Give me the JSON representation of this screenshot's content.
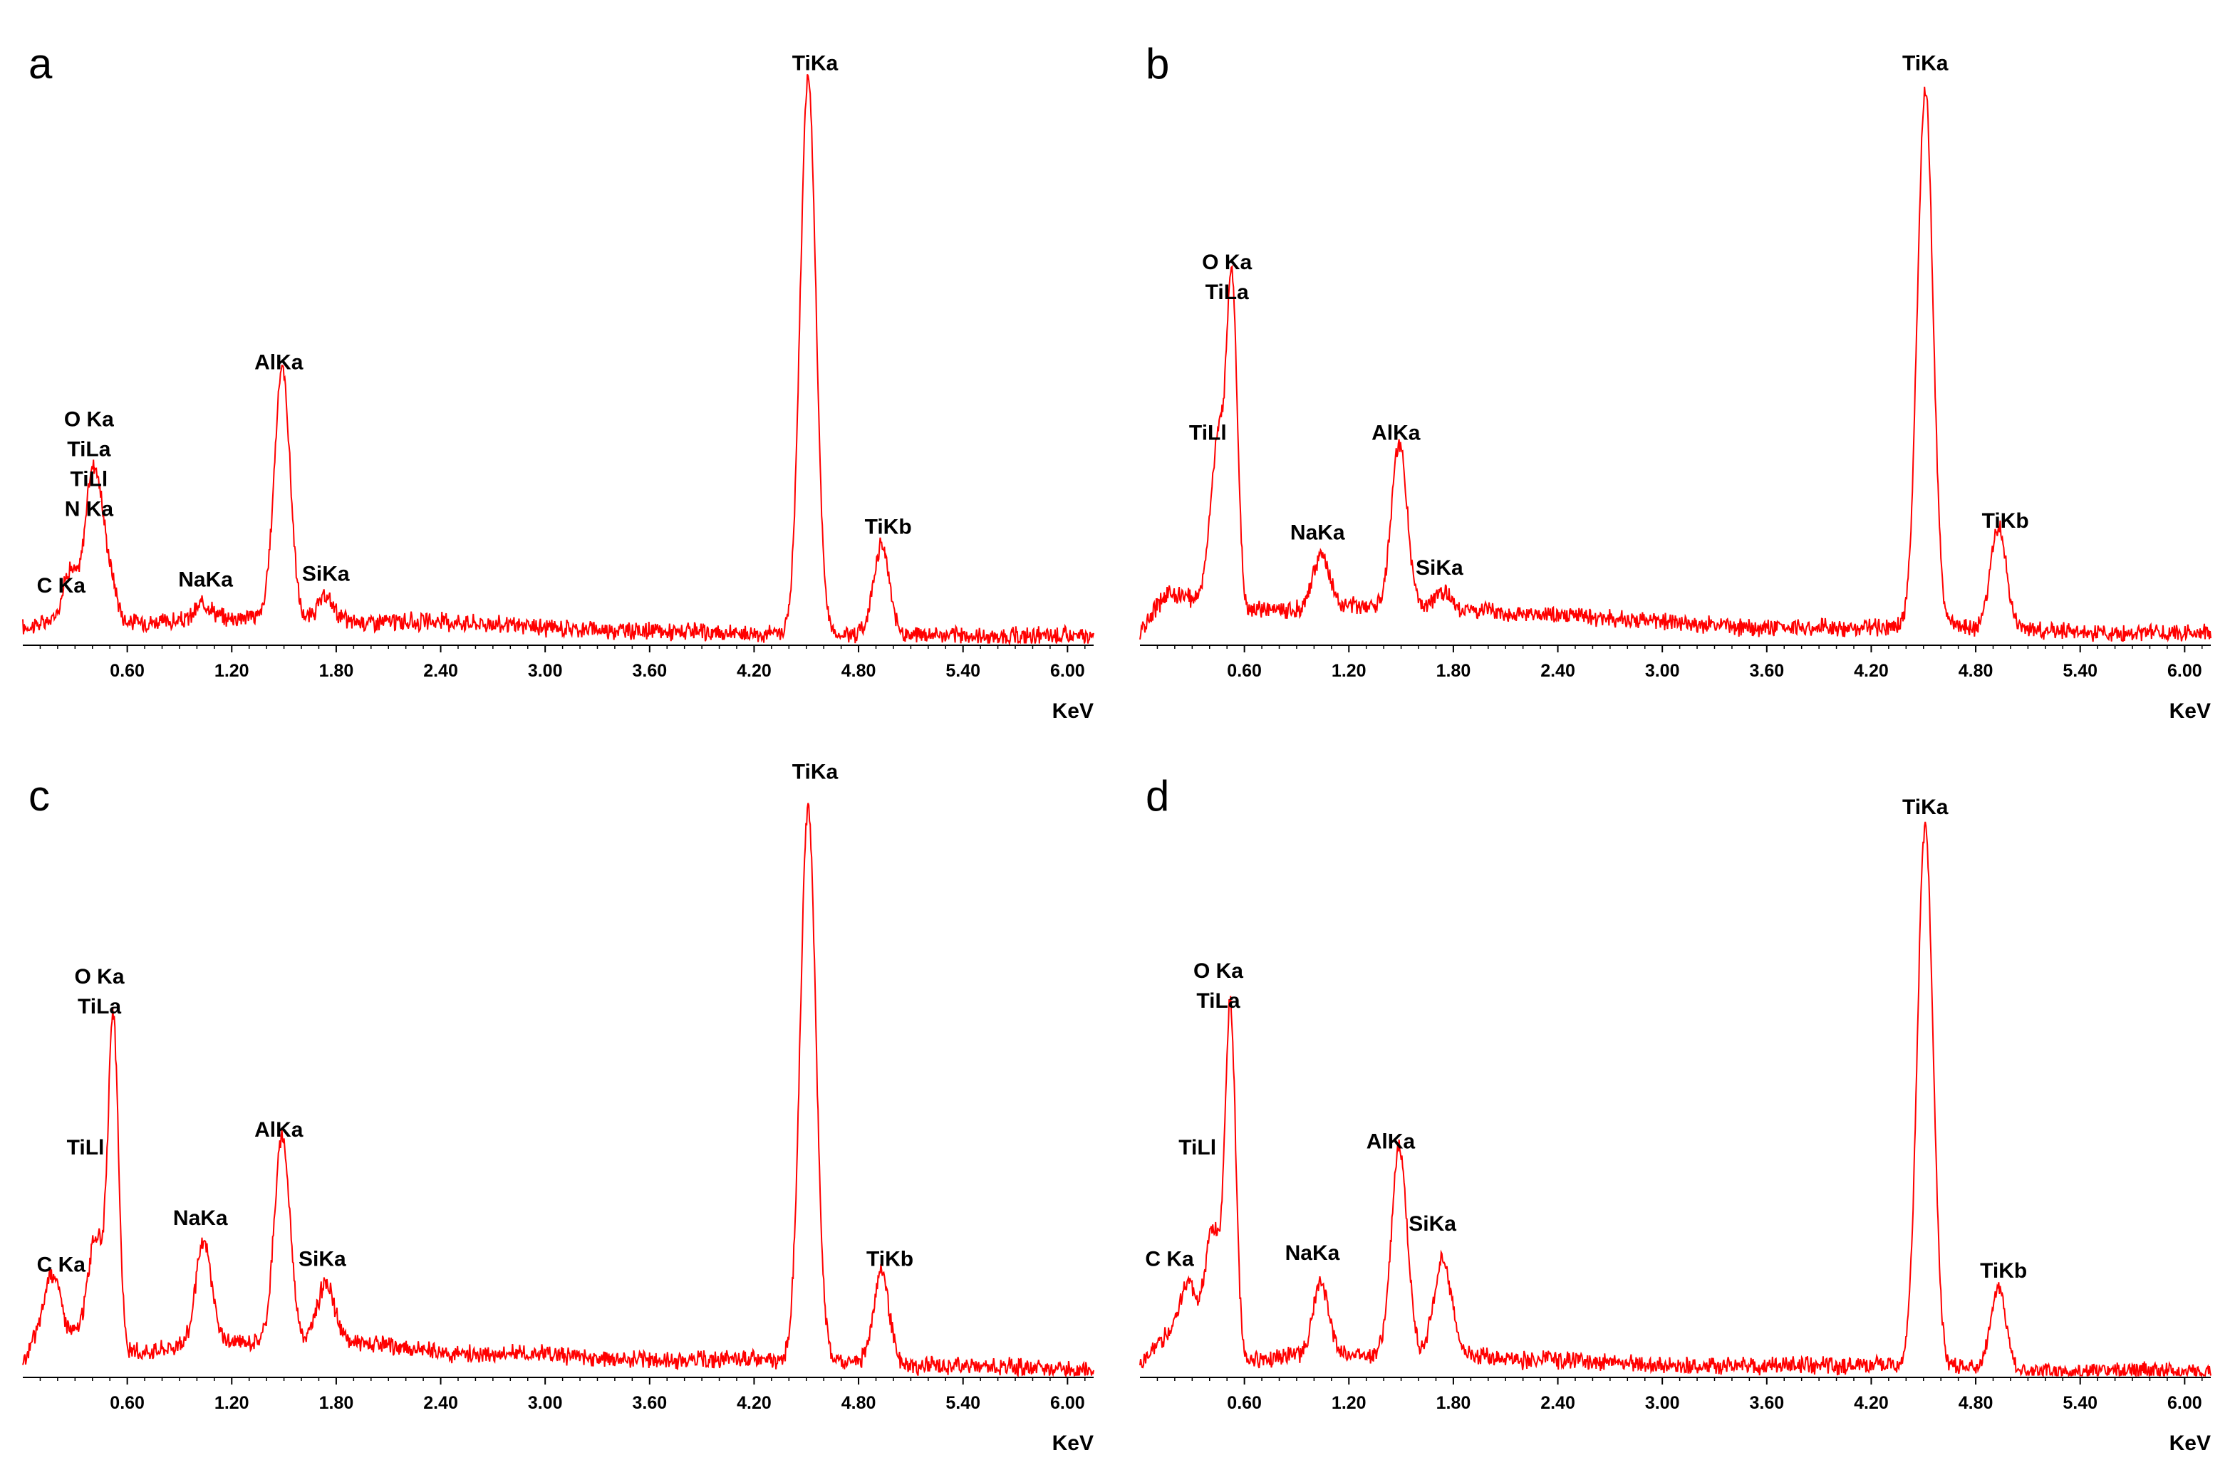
{
  "colors": {
    "spectrum": "#ff0000",
    "axis": "#000000",
    "background": "#ffffff"
  },
  "chart_data": [
    {
      "type": "line",
      "panel_label": "a",
      "xlabel": "KeV",
      "xlim": [
        0,
        6.15
      ],
      "ylim": [
        0,
        100
      ],
      "x_ticks": [
        "0.60",
        "1.20",
        "1.80",
        "2.40",
        "3.00",
        "3.60",
        "4.20",
        "4.80",
        "5.40",
        "6.00"
      ],
      "background": [
        [
          0,
          3
        ],
        [
          0.15,
          4
        ],
        [
          0.3,
          5
        ],
        [
          0.6,
          4
        ],
        [
          1.0,
          4
        ],
        [
          1.3,
          5
        ],
        [
          1.6,
          4
        ],
        [
          1.9,
          4
        ],
        [
          2.2,
          4
        ],
        [
          2.5,
          4
        ],
        [
          3.0,
          3
        ],
        [
          3.5,
          2.5
        ],
        [
          4.0,
          2
        ],
        [
          4.4,
          2
        ],
        [
          4.6,
          2
        ],
        [
          5.0,
          2
        ],
        [
          5.5,
          1.5
        ],
        [
          6.15,
          1.5
        ]
      ],
      "peaks": [
        {
          "label": "C Ka",
          "energy": 0.27,
          "height": 8,
          "width": 0.04
        },
        {
          "label": "N Ka",
          "energy": 0.39,
          "height": 20,
          "width": 0.04
        },
        {
          "label": "TiLl",
          "energy": 0.45,
          "height": 14,
          "width": 0.04
        },
        {
          "label": "O Ka",
          "energy": 0.52,
          "height": 4,
          "width": 0.03
        },
        {
          "label": "NaKa",
          "energy": 1.04,
          "height": 3,
          "width": 0.05
        },
        {
          "label": "AlKa",
          "energy": 1.49,
          "height": 43,
          "width": 0.045
        },
        {
          "label": "SiKa",
          "energy": 1.74,
          "height": 4,
          "width": 0.05
        },
        {
          "label": "TiKa",
          "energy": 4.51,
          "height": 95,
          "width": 0.045
        },
        {
          "label": "TiKb",
          "energy": 4.93,
          "height": 15,
          "width": 0.045
        }
      ],
      "peak_labels": [
        {
          "lines": [
            "C Ka"
          ],
          "energy": 0.22,
          "label_level": 9
        },
        {
          "lines": [
            "O Ka",
            "TiLa",
            "TiLl",
            "N Ka"
          ],
          "energy": 0.38,
          "label_level": 22
        },
        {
          "lines": [
            "NaKa"
          ],
          "energy": 1.05,
          "label_level": 10
        },
        {
          "lines": [
            "AlKa"
          ],
          "energy": 1.47,
          "label_level": 47
        },
        {
          "lines": [
            "SiKa"
          ],
          "energy": 1.74,
          "label_level": 11
        },
        {
          "lines": [
            "TiKa"
          ],
          "energy": 4.55,
          "label_level": 98
        },
        {
          "lines": [
            "TiKb"
          ],
          "energy": 4.97,
          "label_level": 19
        }
      ]
    },
    {
      "type": "line",
      "panel_label": "b",
      "xlabel": "KeV",
      "xlim": [
        0,
        6.15
      ],
      "ylim": [
        0,
        100
      ],
      "x_ticks": [
        "0.60",
        "1.20",
        "1.80",
        "2.40",
        "3.00",
        "3.60",
        "4.20",
        "4.80",
        "5.40",
        "6.00"
      ],
      "background": [
        [
          0,
          2
        ],
        [
          0.15,
          9
        ],
        [
          0.3,
          8
        ],
        [
          0.6,
          6
        ],
        [
          1.0,
          6
        ],
        [
          1.3,
          7
        ],
        [
          1.6,
          6
        ],
        [
          1.9,
          6
        ],
        [
          2.2,
          5
        ],
        [
          2.5,
          5
        ],
        [
          3.0,
          4
        ],
        [
          3.5,
          3
        ],
        [
          4.0,
          3
        ],
        [
          4.4,
          3
        ],
        [
          4.6,
          3
        ],
        [
          5.0,
          3
        ],
        [
          5.5,
          2
        ],
        [
          6.15,
          2
        ]
      ],
      "peaks": [
        {
          "label": "TiLl",
          "energy": 0.45,
          "height": 28,
          "width": 0.045
        },
        {
          "label": "O Ka",
          "energy": 0.53,
          "height": 52,
          "width": 0.03
        },
        {
          "label": "NaKa",
          "energy": 1.04,
          "height": 9,
          "width": 0.05
        },
        {
          "label": "AlKa",
          "energy": 1.49,
          "height": 28,
          "width": 0.045
        },
        {
          "label": "SiKa",
          "energy": 1.74,
          "height": 3,
          "width": 0.05
        },
        {
          "label": "TiKa",
          "energy": 4.51,
          "height": 92,
          "width": 0.045
        },
        {
          "label": "TiKb",
          "energy": 4.93,
          "height": 17,
          "width": 0.045
        }
      ],
      "peak_labels": [
        {
          "lines": [
            "TiLl"
          ],
          "energy": 0.39,
          "label_level": 35
        },
        {
          "lines": [
            "O Ka",
            "TiLa"
          ],
          "energy": 0.5,
          "label_level": 59
        },
        {
          "lines": [
            "NaKa"
          ],
          "energy": 1.02,
          "label_level": 18
        },
        {
          "lines": [
            "AlKa"
          ],
          "energy": 1.47,
          "label_level": 35
        },
        {
          "lines": [
            "SiKa"
          ],
          "energy": 1.72,
          "label_level": 12
        },
        {
          "lines": [
            "TiKa"
          ],
          "energy": 4.51,
          "label_level": 98
        },
        {
          "lines": [
            "TiKb"
          ],
          "energy": 4.97,
          "label_level": 20
        }
      ]
    },
    {
      "type": "line",
      "panel_label": "c",
      "xlabel": "KeV",
      "xlim": [
        0,
        6.15
      ],
      "ylim": [
        0,
        100
      ],
      "x_ticks": [
        "0.60",
        "1.20",
        "1.80",
        "2.40",
        "3.00",
        "3.60",
        "4.20",
        "4.80",
        "5.40",
        "6.00"
      ],
      "background": [
        [
          0,
          2
        ],
        [
          0.15,
          13
        ],
        [
          0.25,
          8
        ],
        [
          0.6,
          4
        ],
        [
          1.0,
          6
        ],
        [
          1.3,
          6
        ],
        [
          1.6,
          6
        ],
        [
          1.9,
          6
        ],
        [
          2.2,
          5
        ],
        [
          2.5,
          4
        ],
        [
          3.0,
          4
        ],
        [
          3.5,
          3
        ],
        [
          4.0,
          3
        ],
        [
          4.4,
          3
        ],
        [
          4.6,
          3
        ],
        [
          5.0,
          2
        ],
        [
          5.5,
          2
        ],
        [
          6.15,
          1
        ]
      ],
      "peaks": [
        {
          "label": "C Ka",
          "energy": 0.18,
          "height": 6,
          "width": 0.04
        },
        {
          "label": "TiLl",
          "energy": 0.42,
          "height": 18,
          "width": 0.045
        },
        {
          "label": "O Ka",
          "energy": 0.52,
          "height": 55,
          "width": 0.03
        },
        {
          "label": "NaKa",
          "energy": 1.04,
          "height": 17,
          "width": 0.045
        },
        {
          "label": "AlKa",
          "energy": 1.49,
          "height": 35,
          "width": 0.045
        },
        {
          "label": "SiKa",
          "energy": 1.74,
          "height": 10,
          "width": 0.05
        },
        {
          "label": "TiKa",
          "energy": 4.51,
          "height": 94,
          "width": 0.045
        },
        {
          "label": "TiKb",
          "energy": 4.93,
          "height": 16,
          "width": 0.045
        }
      ],
      "peak_labels": [
        {
          "lines": [
            "C Ka"
          ],
          "energy": 0.22,
          "label_level": 18
        },
        {
          "lines": [
            "TiLl"
          ],
          "energy": 0.36,
          "label_level": 38
        },
        {
          "lines": [
            "O Ka",
            "TiLa"
          ],
          "energy": 0.44,
          "label_level": 62
        },
        {
          "lines": [
            "NaKa"
          ],
          "energy": 1.02,
          "label_level": 26
        },
        {
          "lines": [
            "AlKa"
          ],
          "energy": 1.47,
          "label_level": 41
        },
        {
          "lines": [
            "SiKa"
          ],
          "energy": 1.72,
          "label_level": 19
        },
        {
          "lines": [
            "TiKa"
          ],
          "energy": 4.55,
          "label_level": 102
        },
        {
          "lines": [
            "TiKb"
          ],
          "energy": 4.98,
          "label_level": 19
        }
      ]
    },
    {
      "type": "line",
      "panel_label": "d",
      "xlabel": "KeV",
      "xlim": [
        0,
        6.15
      ],
      "ylim": [
        0,
        100
      ],
      "x_ticks": [
        "0.60",
        "1.20",
        "1.80",
        "2.40",
        "3.00",
        "3.60",
        "4.20",
        "4.80",
        "5.40",
        "6.00"
      ],
      "background": [
        [
          0,
          2
        ],
        [
          0.2,
          9
        ],
        [
          0.3,
          7
        ],
        [
          0.6,
          3
        ],
        [
          1.0,
          4
        ],
        [
          1.3,
          4
        ],
        [
          1.6,
          4
        ],
        [
          1.9,
          4
        ],
        [
          2.2,
          3
        ],
        [
          2.5,
          3
        ],
        [
          3.0,
          2
        ],
        [
          3.5,
          2
        ],
        [
          4.0,
          2
        ],
        [
          4.4,
          2
        ],
        [
          4.6,
          2
        ],
        [
          5.0,
          1
        ],
        [
          5.5,
          1
        ],
        [
          6.15,
          1
        ]
      ],
      "peaks": [
        {
          "label": "C Ka",
          "energy": 0.28,
          "height": 9,
          "width": 0.04
        },
        {
          "label": "TiLl",
          "energy": 0.42,
          "height": 20,
          "width": 0.045
        },
        {
          "label": "O Ka",
          "energy": 0.52,
          "height": 58,
          "width": 0.03
        },
        {
          "label": "NaKa",
          "energy": 1.04,
          "height": 12,
          "width": 0.045
        },
        {
          "label": "AlKa",
          "energy": 1.49,
          "height": 35,
          "width": 0.045
        },
        {
          "label": "SiKa",
          "energy": 1.74,
          "height": 16,
          "width": 0.05
        },
        {
          "label": "TiKa",
          "energy": 4.51,
          "height": 92,
          "width": 0.045
        },
        {
          "label": "TiKb",
          "energy": 4.93,
          "height": 14,
          "width": 0.045
        }
      ],
      "peak_labels": [
        {
          "lines": [
            "C Ka"
          ],
          "energy": 0.17,
          "label_level": 19
        },
        {
          "lines": [
            "TiLl"
          ],
          "energy": 0.33,
          "label_level": 38
        },
        {
          "lines": [
            "O Ka",
            "TiLa"
          ],
          "energy": 0.45,
          "label_level": 63
        },
        {
          "lines": [
            "NaKa"
          ],
          "energy": 0.99,
          "label_level": 20
        },
        {
          "lines": [
            "AlKa"
          ],
          "energy": 1.44,
          "label_level": 39
        },
        {
          "lines": [
            "SiKa"
          ],
          "energy": 1.68,
          "label_level": 25
        },
        {
          "lines": [
            "TiKa"
          ],
          "energy": 4.51,
          "label_level": 96
        },
        {
          "lines": [
            "TiKb"
          ],
          "energy": 4.96,
          "label_level": 17
        }
      ]
    }
  ]
}
